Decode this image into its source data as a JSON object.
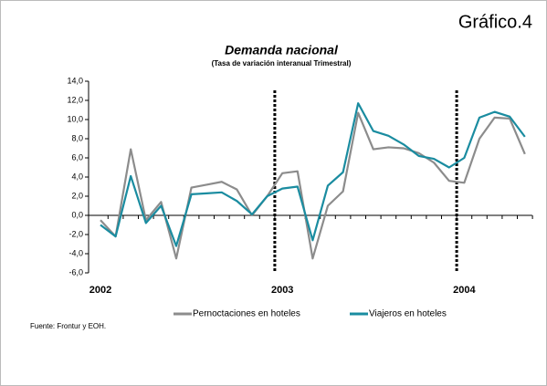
{
  "chart_data": {
    "type": "line",
    "figure_label": "Gráfico.4",
    "title": "Demanda nacional",
    "subtitle": "(Tasa de variación interanual Trimestral)",
    "source": "Fuente: Frontur y EOH.",
    "categories": [
      "2002",
      null,
      null,
      null,
      null,
      null,
      null,
      null,
      null,
      null,
      null,
      null,
      "2003",
      null,
      null,
      null,
      null,
      null,
      null,
      null,
      null,
      null,
      null,
      null,
      "2004",
      null,
      null,
      null,
      null
    ],
    "series": [
      {
        "name": "Pernoctaciones en hoteles",
        "color": "#8c8c8c",
        "values": [
          -0.5,
          -2.2,
          6.9,
          -0.5,
          1.4,
          -4.5,
          2.9,
          3.2,
          3.5,
          2.7,
          0.0,
          2.0,
          4.4,
          4.6,
          -4.5,
          1.0,
          2.5,
          10.7,
          6.9,
          7.1,
          7.0,
          6.5,
          5.5,
          3.6,
          3.4,
          8.0,
          10.2,
          10.1,
          6.4
        ]
      },
      {
        "name": "Viajeros en hoteles",
        "color": "#1a8ca0",
        "values": [
          -1.0,
          -2.2,
          4.1,
          -0.8,
          1.0,
          -3.2,
          2.2,
          2.3,
          2.4,
          1.5,
          0.1,
          2.0,
          2.8,
          3.0,
          -2.6,
          3.1,
          4.5,
          11.7,
          8.8,
          8.3,
          7.4,
          6.2,
          5.9,
          5.0,
          6.0,
          10.2,
          10.8,
          10.3,
          8.2
        ]
      }
    ],
    "ylim": [
      -6,
      14
    ],
    "yticks": [
      {
        "value": -6,
        "label": "-6,0"
      },
      {
        "value": -4,
        "label": "-4,0"
      },
      {
        "value": -2,
        "label": "-2,0"
      },
      {
        "value": 0,
        "label": "0,0"
      },
      {
        "value": 2,
        "label": "2,0"
      },
      {
        "value": 4,
        "label": "4,0"
      },
      {
        "value": 6,
        "label": "6,0"
      },
      {
        "value": 8,
        "label": "8,0"
      },
      {
        "value": 10,
        "label": "10,0"
      },
      {
        "value": 12,
        "label": "12,0"
      },
      {
        "value": 14,
        "label": "14,0"
      }
    ],
    "legend": "bottom"
  }
}
